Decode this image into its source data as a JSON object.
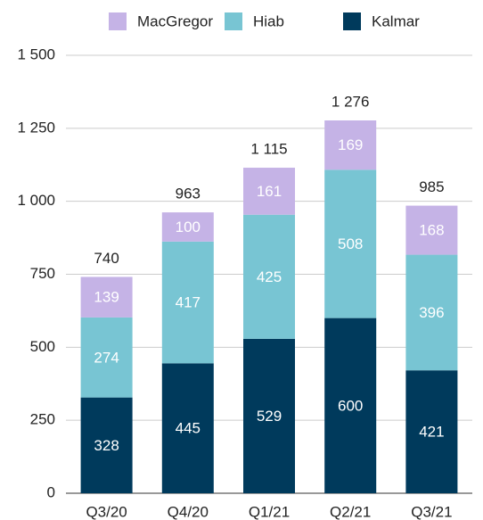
{
  "chart_data": {
    "type": "stacked_bar",
    "categories": [
      "Q3/20",
      "Q4/20",
      "Q1/21",
      "Q2/21",
      "Q3/21"
    ],
    "series": [
      {
        "name": "Kalmar",
        "color": "#003a5c",
        "values": [
          328,
          445,
          529,
          600,
          421
        ]
      },
      {
        "name": "Hiab",
        "color": "#78c5d3",
        "values": [
          274,
          417,
          425,
          508,
          396
        ]
      },
      {
        "name": "MacGregor",
        "color": "#c5b3e6",
        "values": [
          139,
          100,
          161,
          169,
          168
        ]
      }
    ],
    "totals": [
      740,
      963,
      1115,
      1276,
      985
    ],
    "total_labels": [
      "740",
      "963",
      "1 115",
      "1 276",
      "985"
    ],
    "legend_order": [
      "MacGregor",
      "Hiab",
      "Kalmar"
    ],
    "ylim": [
      0,
      1500
    ],
    "yticks": [
      0,
      250,
      500,
      750,
      {
        "value": 1000,
        "label": "1 000"
      },
      {
        "value": 1250,
        "label": "1 250"
      },
      {
        "value": 1500,
        "label": "1 500"
      }
    ],
    "grid": true,
    "legend": "top"
  }
}
